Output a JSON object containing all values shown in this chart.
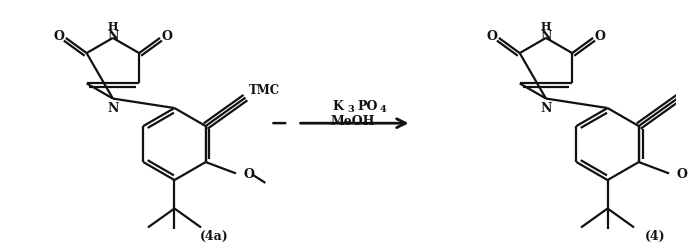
{
  "bg_color": "#ffffff",
  "line_color": "#111111",
  "line_width": 1.6,
  "fig_width": 6.99,
  "fig_height": 2.42,
  "dpi": 100,
  "label_4a": "(4a)",
  "label_4": "(4)",
  "label_TMC": "TMC",
  "dot_marker": "−",
  "reagent1": "K",
  "reagent1_sub": "3",
  "reagent1b": "PO",
  "reagent1b_sub": "4",
  "reagent2": "MeOH"
}
